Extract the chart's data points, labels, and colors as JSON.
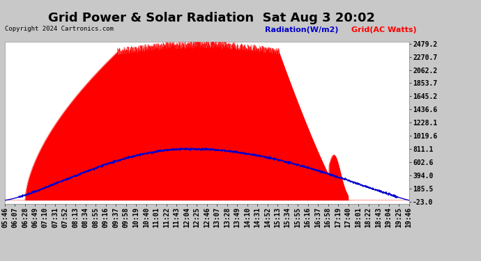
{
  "title": "Grid Power & Solar Radiation  Sat Aug 3 20:02",
  "copyright": "Copyright 2024 Cartronics.com",
  "legend_radiation": "Radiation(W/m2)",
  "legend_grid": "Grid(AC Watts)",
  "yticks": [
    2479.2,
    2270.7,
    2062.2,
    1853.7,
    1645.2,
    1436.6,
    1228.1,
    1019.6,
    811.1,
    602.6,
    394.0,
    185.5,
    -23.0
  ],
  "ymin": -23.0,
  "ymax": 2479.2,
  "bg_color": "#c8c8c8",
  "plot_bg_color": "#ffffff",
  "fill_color": "#ff0000",
  "radiation_color": "#0000cc",
  "title_fontsize": 13,
  "tick_fontsize": 7,
  "tick_labels": [
    "05:46",
    "06:07",
    "06:28",
    "06:49",
    "07:10",
    "07:31",
    "07:52",
    "08:13",
    "08:34",
    "08:55",
    "09:16",
    "09:37",
    "09:58",
    "10:19",
    "10:40",
    "11:01",
    "11:22",
    "11:43",
    "12:04",
    "12:25",
    "12:46",
    "13:07",
    "13:28",
    "13:49",
    "14:10",
    "14:31",
    "14:52",
    "15:13",
    "15:34",
    "15:55",
    "16:16",
    "16:37",
    "16:58",
    "17:19",
    "17:40",
    "18:01",
    "18:22",
    "18:43",
    "19:04",
    "19:25",
    "19:46"
  ]
}
